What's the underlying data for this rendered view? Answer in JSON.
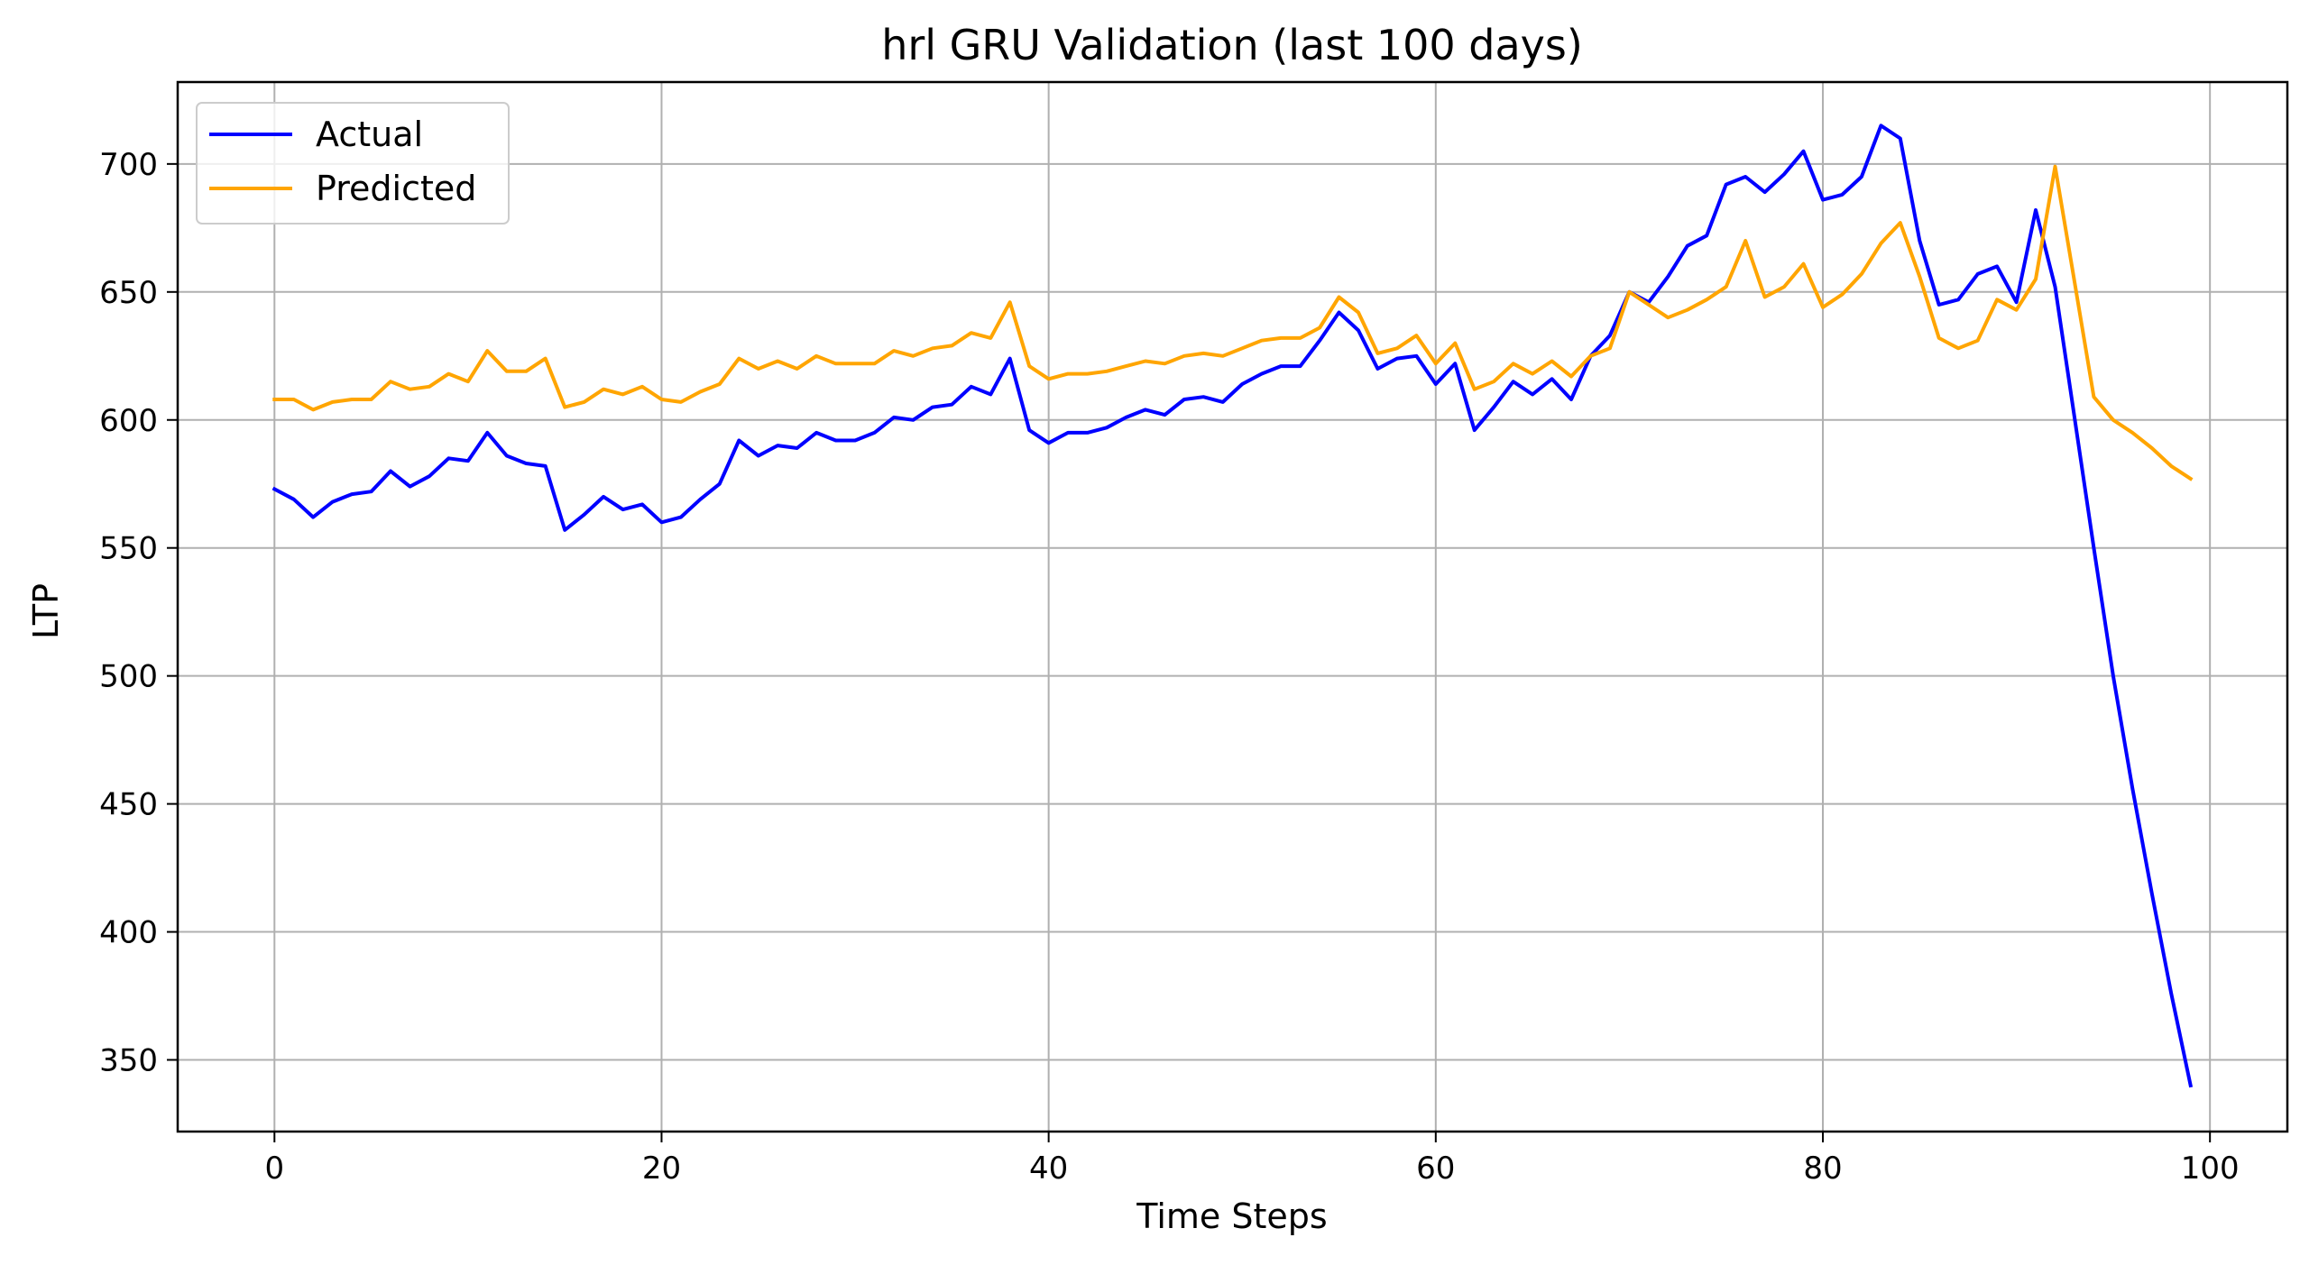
{
  "chart_data": {
    "type": "line",
    "title": "hrl GRU Validation (last 100 days)",
    "xlabel": "Time Steps",
    "ylabel": "LTP",
    "xlim": [
      -5,
      104
    ],
    "ylim": [
      322,
      732
    ],
    "xticks": [
      0,
      20,
      40,
      60,
      80,
      100
    ],
    "yticks": [
      350,
      400,
      450,
      500,
      550,
      600,
      650,
      700
    ],
    "grid": true,
    "legend_position": "upper-left",
    "colors": {
      "Actual": "#0000ff",
      "Predicted": "#ffa500"
    },
    "x": [
      0,
      1,
      2,
      3,
      4,
      5,
      6,
      7,
      8,
      9,
      10,
      11,
      12,
      13,
      14,
      15,
      16,
      17,
      18,
      19,
      20,
      21,
      22,
      23,
      24,
      25,
      26,
      27,
      28,
      29,
      30,
      31,
      32,
      33,
      34,
      35,
      36,
      37,
      38,
      39,
      40,
      41,
      42,
      43,
      44,
      45,
      46,
      47,
      48,
      49,
      50,
      51,
      52,
      53,
      54,
      55,
      56,
      57,
      58,
      59,
      60,
      61,
      62,
      63,
      64,
      65,
      66,
      67,
      68,
      69,
      70,
      71,
      72,
      73,
      74,
      75,
      76,
      77,
      78,
      79,
      80,
      81,
      82,
      83,
      84,
      85,
      86,
      87,
      88,
      89,
      90,
      91,
      92,
      93,
      94,
      95,
      96,
      97,
      98,
      99
    ],
    "series": [
      {
        "name": "Actual",
        "values": [
          573,
          569,
          562,
          568,
          571,
          572,
          580,
          574,
          578,
          585,
          584,
          595,
          586,
          583,
          582,
          557,
          563,
          570,
          565,
          567,
          560,
          562,
          569,
          575,
          592,
          586,
          590,
          589,
          595,
          592,
          592,
          595,
          601,
          600,
          605,
          606,
          613,
          610,
          624,
          596,
          591,
          595,
          595,
          597,
          601,
          604,
          602,
          608,
          609,
          607,
          614,
          618,
          621,
          621,
          631,
          642,
          635,
          620,
          624,
          625,
          614,
          622,
          596,
          605,
          615,
          610,
          616,
          608,
          625,
          633,
          650,
          646,
          656,
          668,
          672,
          692,
          695,
          689,
          696,
          705,
          686,
          688,
          695,
          715,
          710,
          670,
          645,
          647,
          657,
          660,
          646,
          682,
          652,
          601,
          550,
          500,
          456,
          415,
          376,
          340
        ]
      },
      {
        "name": "Predicted",
        "values": [
          608,
          608,
          604,
          607,
          608,
          608,
          615,
          612,
          613,
          618,
          615,
          627,
          619,
          619,
          624,
          605,
          607,
          612,
          610,
          613,
          608,
          607,
          611,
          614,
          624,
          620,
          623,
          620,
          625,
          622,
          622,
          622,
          627,
          625,
          628,
          629,
          634,
          632,
          646,
          621,
          616,
          618,
          618,
          619,
          621,
          623,
          622,
          625,
          626,
          625,
          628,
          631,
          632,
          632,
          636,
          648,
          642,
          626,
          628,
          633,
          622,
          630,
          612,
          615,
          622,
          618,
          623,
          617,
          625,
          628,
          650,
          645,
          640,
          643,
          647,
          652,
          670,
          648,
          652,
          661,
          644,
          649,
          657,
          669,
          677,
          656,
          632,
          628,
          631,
          647,
          643,
          655,
          699,
          654,
          609,
          600,
          595,
          589,
          582,
          577
        ]
      }
    ]
  }
}
